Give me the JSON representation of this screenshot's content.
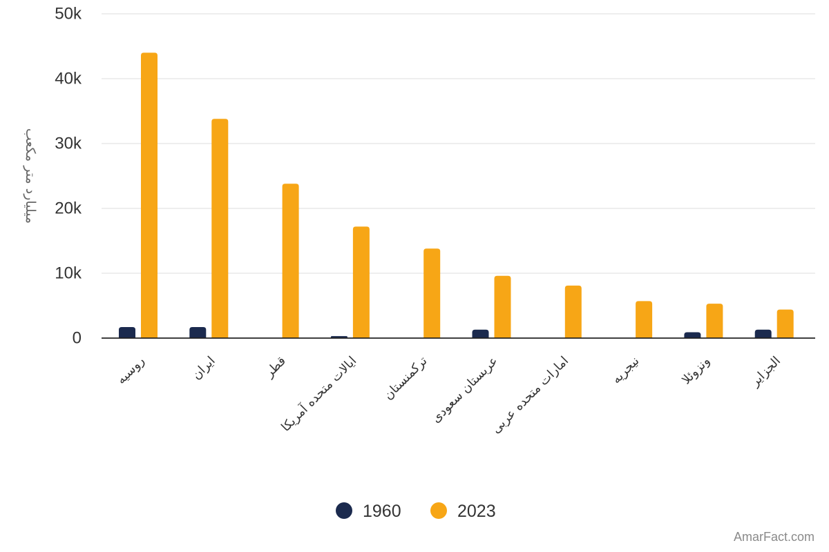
{
  "colors": {
    "series_1960": "#1b2a4e",
    "series_2023": "#f7a616",
    "grid": "#e3e3e3",
    "axis": "#222222"
  },
  "watermark": "AmarFact.com",
  "chart_data": {
    "type": "bar",
    "title": "",
    "xlabel": "",
    "ylabel": "میلیارد متر مکعب",
    "ylim": [
      0,
      50000
    ],
    "yticks": [
      {
        "value": 0,
        "label": "0"
      },
      {
        "value": 10000,
        "label": "10k"
      },
      {
        "value": 20000,
        "label": "20k"
      },
      {
        "value": 30000,
        "label": "30k"
      },
      {
        "value": 40000,
        "label": "40k"
      },
      {
        "value": 50000,
        "label": "50k"
      }
    ],
    "grid": true,
    "legend_position": "bottom-center",
    "categories": [
      "روسیه",
      "ایران",
      "قطر",
      "ایالات متحده آمریکا",
      "ترکمنستان",
      "عربستان سعودی",
      "امارات متحده عربی",
      "نیجریه",
      "ونزوئلا",
      "الجزایر"
    ],
    "series": [
      {
        "name": "1960",
        "color": "#1b2a4e",
        "values": [
          1700,
          1700,
          0,
          300,
          0,
          1300,
          0,
          0,
          900,
          1300
        ]
      },
      {
        "name": "2023",
        "color": "#f7a616",
        "values": [
          44000,
          33800,
          23800,
          17200,
          13800,
          9600,
          8100,
          5700,
          5300,
          4400
        ]
      }
    ]
  }
}
